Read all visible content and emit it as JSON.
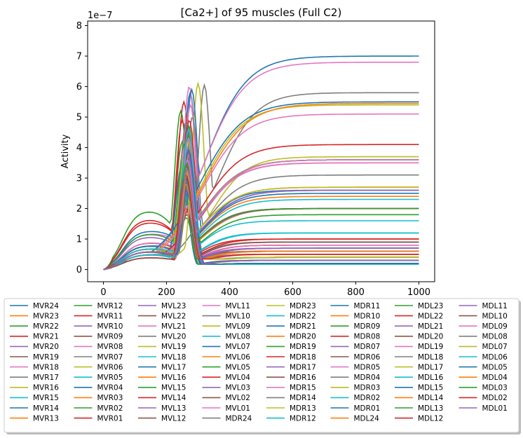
{
  "chart_data": {
    "type": "line",
    "title": "[Ca2+] of 95 muscles (Full C2)",
    "xlabel": "",
    "ylabel": "Activity",
    "offset_text": "1e−7",
    "xlim": [
      -50,
      1050
    ],
    "ylim": [
      -0.4,
      8.15
    ],
    "y_scale_exponent": -7,
    "xticks": [
      0,
      200,
      400,
      600,
      800,
      1000
    ],
    "yticks": [
      0,
      1,
      2,
      3,
      4,
      5,
      6,
      7,
      8
    ],
    "grid": false,
    "legend_placement": "below plot, 8 columns",
    "palette": [
      "#1f77b4",
      "#ff7f0e",
      "#2ca02c",
      "#d62728",
      "#9467bd",
      "#8c564b",
      "#e377c2",
      "#7f7f7f",
      "#bcbd22",
      "#17becf"
    ],
    "series": [
      {
        "name": "MVR24",
        "peak_t": 275,
        "peak": 5.8,
        "final": 2.6,
        "shoulder": 0.5,
        "settle": 140
      },
      {
        "name": "MVR23",
        "peak_t": 260,
        "peak": 3.2,
        "final": 0.5,
        "shoulder": 0.6,
        "settle": 110
      },
      {
        "name": "MVR22",
        "peak_t": 250,
        "peak": 4.2,
        "final": 0.3,
        "shoulder": 0.7,
        "settle": 100
      },
      {
        "name": "MVR21",
        "peak_t": 255,
        "peak": 5.5,
        "final": 1.0,
        "shoulder": 1.6,
        "settle": 120
      },
      {
        "name": "MVR20",
        "peak_t": 265,
        "peak": 4.6,
        "final": 2.0,
        "shoulder": 0.9,
        "settle": 150
      },
      {
        "name": "MVR19",
        "peak_t": 260,
        "peak": 3.9,
        "final": 0.2,
        "shoulder": 0.8,
        "settle": 100
      },
      {
        "name": "MVR18",
        "peak_t": 262,
        "peak": 3.3,
        "final": 0.7,
        "shoulder": 0.9,
        "settle": 110
      },
      {
        "name": "MVR17",
        "peak_t": 258,
        "peak": 3.0,
        "final": 0.6,
        "shoulder": 0.6,
        "settle": 100
      },
      {
        "name": "MVR16",
        "peak_t": 266,
        "peak": 3.5,
        "final": 0.4,
        "shoulder": 0.5,
        "settle": 110
      },
      {
        "name": "MVR15",
        "peak_t": 270,
        "peak": 3.1,
        "final": 0.3,
        "shoulder": 0.6,
        "settle": 110
      },
      {
        "name": "MVR14",
        "peak_t": 262,
        "peak": 2.6,
        "final": 0.2,
        "shoulder": 0.7,
        "settle": 100
      },
      {
        "name": "MVR13",
        "peak_t": 268,
        "peak": 2.9,
        "final": 0.4,
        "shoulder": 0.5,
        "settle": 120
      },
      {
        "name": "MVR12",
        "peak_t": 245,
        "peak": 5.2,
        "final": 0.6,
        "shoulder": 2.0,
        "settle": 110
      },
      {
        "name": "MVR11",
        "peak_t": 250,
        "peak": 4.9,
        "final": 0.5,
        "shoulder": 1.7,
        "settle": 110
      },
      {
        "name": "MVR10",
        "peak_t": 256,
        "peak": 2.8,
        "final": 0.5,
        "shoulder": 1.1,
        "settle": 100
      },
      {
        "name": "MVR09",
        "peak_t": 258,
        "peak": 3.1,
        "final": 0.6,
        "shoulder": 0.8,
        "settle": 100
      },
      {
        "name": "MVR08",
        "peak_t": 272,
        "peak": 4.0,
        "final": 0.8,
        "shoulder": 1.2,
        "settle": 120
      },
      {
        "name": "MVR07",
        "peak_t": 276,
        "peak": 2.9,
        "final": 0.4,
        "shoulder": 0.6,
        "settle": 130
      },
      {
        "name": "MVR06",
        "peak_t": 264,
        "peak": 2.4,
        "final": 0.6,
        "shoulder": 0.7,
        "settle": 120
      },
      {
        "name": "MVR05",
        "peak_t": 262,
        "peak": 2.2,
        "final": 1.2,
        "shoulder": 0.7,
        "settle": 130
      },
      {
        "name": "MVR04",
        "peak_t": 265,
        "peak": 2.7,
        "final": 0.9,
        "shoulder": 1.3,
        "settle": 120
      },
      {
        "name": "MVR03",
        "peak_t": 268,
        "peak": 2.0,
        "final": 2.0,
        "shoulder": 0.8,
        "settle": 160
      },
      {
        "name": "MVR02",
        "peak_t": 262,
        "peak": 1.7,
        "final": 0.4,
        "shoulder": 0.6,
        "settle": 120
      },
      {
        "name": "MVR01",
        "peak_t": 266,
        "peak": 1.9,
        "final": 0.7,
        "shoulder": 0.5,
        "settle": 130
      },
      {
        "name": "MVL23",
        "peak_t": 258,
        "peak": 2.5,
        "final": 0.6,
        "shoulder": 0.4,
        "settle": 120
      },
      {
        "name": "MVL22",
        "peak_t": 262,
        "peak": 3.3,
        "final": 0.6,
        "shoulder": 0.9,
        "settle": 130
      },
      {
        "name": "MVL21",
        "peak_t": 272,
        "peak": 6.0,
        "final": 3.5,
        "shoulder": 0.9,
        "settle": 170
      },
      {
        "name": "MVL20",
        "peak_t": 257,
        "peak": 3.0,
        "final": 0.9,
        "shoulder": 0.6,
        "settle": 120
      },
      {
        "name": "MVL19",
        "peak_t": 264,
        "peak": 2.3,
        "final": 0.3,
        "shoulder": 0.5,
        "settle": 120
      },
      {
        "name": "MVL18",
        "peak_t": 252,
        "peak": 2.8,
        "final": 0.1,
        "shoulder": 0.5,
        "settle": 110
      },
      {
        "name": "MVL17",
        "peak_t": 248,
        "peak": 3.4,
        "final": 0.3,
        "shoulder": 0.6,
        "settle": 110
      },
      {
        "name": "MVL16",
        "peak_t": 262,
        "peak": 3.6,
        "final": 0.4,
        "shoulder": 0.8,
        "settle": 120
      },
      {
        "name": "MVL15",
        "peak_t": 256,
        "peak": 4.1,
        "final": 0.5,
        "shoulder": 1.2,
        "settle": 120
      },
      {
        "name": "MVL14",
        "peak_t": 262,
        "peak": 3.9,
        "final": 0.8,
        "shoulder": 0.8,
        "settle": 130
      },
      {
        "name": "MVL13",
        "peak_t": 268,
        "peak": 3.0,
        "final": 0.2,
        "shoulder": 0.6,
        "settle": 110
      },
      {
        "name": "MVL12",
        "peak_t": 268,
        "peak": 3.2,
        "final": 0.5,
        "shoulder": 0.5,
        "settle": 120
      },
      {
        "name": "MVL11",
        "peak_t": 260,
        "peak": 2.2,
        "final": 0.8,
        "shoulder": 0.4,
        "settle": 130
      },
      {
        "name": "MVL10",
        "peak_t": 262,
        "peak": 4.8,
        "final": 0.6,
        "shoulder": 0.8,
        "settle": 120
      },
      {
        "name": "MVL09",
        "peak_t": 270,
        "peak": 3.1,
        "final": 0.4,
        "shoulder": 0.5,
        "settle": 130
      },
      {
        "name": "MVL08",
        "peak_t": 258,
        "peak": 3.0,
        "final": 0.1,
        "shoulder": 0.6,
        "settle": 100
      },
      {
        "name": "MVL07",
        "peak_t": 260,
        "peak": 3.7,
        "final": 0.7,
        "shoulder": 0.8,
        "settle": 130
      },
      {
        "name": "MVL06",
        "peak_t": 266,
        "peak": 2.6,
        "final": 0.6,
        "shoulder": 0.7,
        "settle": 130
      },
      {
        "name": "MVL05",
        "peak_t": 254,
        "peak": 2.4,
        "final": 0.2,
        "shoulder": 0.6,
        "settle": 110
      },
      {
        "name": "MVL04",
        "peak_t": 262,
        "peak": 2.0,
        "final": 0.4,
        "shoulder": 0.4,
        "settle": 120
      },
      {
        "name": "MVL03",
        "peak_t": 270,
        "peak": 2.7,
        "final": 2.6,
        "shoulder": 0.6,
        "settle": 170
      },
      {
        "name": "MVL02",
        "peak_t": 264,
        "peak": 1.8,
        "final": 0.3,
        "shoulder": 0.4,
        "settle": 130
      },
      {
        "name": "MVL01",
        "peak_t": 268,
        "peak": 2.1,
        "final": 0.5,
        "shoulder": 0.5,
        "settle": 130
      },
      {
        "name": "MDR24",
        "peak_t": 320,
        "peak": 6.05,
        "final": 5.8,
        "shoulder": 0.5,
        "settle": 170,
        "dip": 4.7
      },
      {
        "name": "MDR23",
        "peak_t": 300,
        "peak": 6.1,
        "final": 3.7,
        "shoulder": 0.6,
        "settle": 160
      },
      {
        "name": "MDR22",
        "peak_t": 262,
        "peak": 2.9,
        "final": 0.3,
        "shoulder": 0.6,
        "settle": 110
      },
      {
        "name": "MDR21",
        "peak_t": 280,
        "peak": 5.9,
        "final": 7.0,
        "shoulder": 0.8,
        "settle": 190,
        "dip": 4.6
      },
      {
        "name": "MDR20",
        "peak_t": 268,
        "peak": 2.8,
        "final": 2.4,
        "shoulder": 0.6,
        "settle": 160
      },
      {
        "name": "MDR19",
        "peak_t": 270,
        "peak": 4.5,
        "final": 1.8,
        "shoulder": 0.5,
        "settle": 150
      },
      {
        "name": "MDR18",
        "peak_t": 266,
        "peak": 3.9,
        "final": 1.0,
        "shoulder": 0.7,
        "settle": 130
      },
      {
        "name": "MDR17",
        "peak_t": 262,
        "peak": 3.2,
        "final": 0.6,
        "shoulder": 0.6,
        "settle": 120
      },
      {
        "name": "MDR16",
        "peak_t": 272,
        "peak": 4.4,
        "final": 3.6,
        "shoulder": 0.6,
        "settle": 180
      },
      {
        "name": "MDR15",
        "peak_t": 276,
        "peak": 5.4,
        "final": 6.8,
        "shoulder": 0.7,
        "settle": 190
      },
      {
        "name": "MDR14",
        "peak_t": 282,
        "peak": 5.0,
        "final": 3.1,
        "shoulder": 0.5,
        "settle": 170
      },
      {
        "name": "MDR13",
        "peak_t": 258,
        "peak": 3.7,
        "final": 0.5,
        "shoulder": 0.7,
        "settle": 120
      },
      {
        "name": "MDR12",
        "peak_t": 264,
        "peak": 4.0,
        "final": 0.3,
        "shoulder": 0.6,
        "settle": 110
      },
      {
        "name": "MDR11",
        "peak_t": 262,
        "peak": 2.6,
        "final": 5.5,
        "shoulder": 0.6,
        "settle": 200
      },
      {
        "name": "MDR10",
        "peak_t": 266,
        "peak": 3.3,
        "final": 2.7,
        "shoulder": 0.6,
        "settle": 170
      },
      {
        "name": "MDR09",
        "peak_t": 270,
        "peak": 4.7,
        "final": 3.6,
        "shoulder": 0.7,
        "settle": 180
      },
      {
        "name": "MDR08",
        "peak_t": 272,
        "peak": 4.9,
        "final": 4.1,
        "shoulder": 0.6,
        "settle": 180
      },
      {
        "name": "MDR07",
        "peak_t": 264,
        "peak": 3.6,
        "final": 2.0,
        "shoulder": 0.5,
        "settle": 160
      },
      {
        "name": "MDR06",
        "peak_t": 266,
        "peak": 3.3,
        "final": 0.6,
        "shoulder": 0.6,
        "settle": 120
      },
      {
        "name": "MDR05",
        "peak_t": 270,
        "peak": 4.6,
        "final": 5.1,
        "shoulder": 0.6,
        "settle": 190
      },
      {
        "name": "MDR04",
        "peak_t": 262,
        "peak": 3.0,
        "final": 0.4,
        "shoulder": 0.6,
        "settle": 110
      },
      {
        "name": "MDR03",
        "peak_t": 268,
        "peak": 4.2,
        "final": 5.4,
        "shoulder": 0.6,
        "settle": 190
      },
      {
        "name": "MDR02",
        "peak_t": 262,
        "peak": 2.9,
        "final": 1.6,
        "shoulder": 0.6,
        "settle": 140
      },
      {
        "name": "MDR01",
        "peak_t": 272,
        "peak": 3.1,
        "final": 0.3,
        "shoulder": 0.6,
        "settle": 110
      },
      {
        "name": "MDL24",
        "peak_t": 274,
        "peak": 3.9,
        "final": 5.45,
        "shoulder": 0.7,
        "settle": 200
      },
      {
        "name": "MDL23",
        "peak_t": 268,
        "peak": 4.4,
        "final": 3.6,
        "shoulder": 0.6,
        "settle": 180
      },
      {
        "name": "MDL22",
        "peak_t": 262,
        "peak": 3.5,
        "final": 2.0,
        "shoulder": 0.5,
        "settle": 150
      },
      {
        "name": "MDL21",
        "peak_t": 266,
        "peak": 3.9,
        "final": 0.7,
        "shoulder": 0.6,
        "settle": 130
      },
      {
        "name": "MDL20",
        "peak_t": 262,
        "peak": 3.1,
        "final": 0.6,
        "shoulder": 0.6,
        "settle": 120
      },
      {
        "name": "MDL19",
        "peak_t": 270,
        "peak": 4.3,
        "final": 3.6,
        "shoulder": 0.6,
        "settle": 180
      },
      {
        "name": "MDL18",
        "peak_t": 262,
        "peak": 3.2,
        "final": 0.4,
        "shoulder": 0.5,
        "settle": 120
      },
      {
        "name": "MDL17",
        "peak_t": 266,
        "peak": 3.4,
        "final": 2.7,
        "shoulder": 0.6,
        "settle": 170
      },
      {
        "name": "MDL16",
        "peak_t": 264,
        "peak": 3.2,
        "final": 1.2,
        "shoulder": 0.5,
        "settle": 140
      },
      {
        "name": "MDL15",
        "peak_t": 270,
        "peak": 3.9,
        "final": 2.5,
        "shoulder": 0.6,
        "settle": 160
      },
      {
        "name": "MDL14",
        "peak_t": 262,
        "peak": 2.8,
        "final": 0.5,
        "shoulder": 0.6,
        "settle": 120
      },
      {
        "name": "MDL13",
        "peak_t": 266,
        "peak": 3.3,
        "final": 0.4,
        "shoulder": 0.6,
        "settle": 120
      },
      {
        "name": "MDL12",
        "peak_t": 262,
        "peak": 3.0,
        "final": 0.3,
        "shoulder": 0.6,
        "settle": 110
      },
      {
        "name": "MDL11",
        "peak_t": 268,
        "peak": 3.6,
        "final": 2.6,
        "shoulder": 0.6,
        "settle": 170
      },
      {
        "name": "MDL10",
        "peak_t": 264,
        "peak": 3.4,
        "final": 0.9,
        "shoulder": 0.6,
        "settle": 130
      },
      {
        "name": "MDL09",
        "peak_t": 266,
        "peak": 3.6,
        "final": 3.5,
        "shoulder": 0.6,
        "settle": 180
      },
      {
        "name": "MDL08",
        "peak_t": 262,
        "peak": 2.9,
        "final": 0.6,
        "shoulder": 0.6,
        "settle": 120
      },
      {
        "name": "MDL07",
        "peak_t": 264,
        "peak": 3.1,
        "final": 0.4,
        "shoulder": 0.6,
        "settle": 120
      },
      {
        "name": "MDL06",
        "peak_t": 270,
        "peak": 4.6,
        "final": 2.3,
        "shoulder": 0.7,
        "settle": 160
      },
      {
        "name": "MDL05",
        "peak_t": 262,
        "peak": 3.0,
        "final": 0.2,
        "shoulder": 0.6,
        "settle": 110
      },
      {
        "name": "MDL04",
        "peak_t": 266,
        "peak": 3.2,
        "final": 0.6,
        "shoulder": 0.6,
        "settle": 120
      },
      {
        "name": "MDL03",
        "peak_t": 264,
        "peak": 3.5,
        "final": 2.0,
        "shoulder": 0.6,
        "settle": 150
      },
      {
        "name": "MDL02",
        "peak_t": 262,
        "peak": 3.1,
        "final": 0.5,
        "shoulder": 0.6,
        "settle": 120
      },
      {
        "name": "MDL01",
        "peak_t": 266,
        "peak": 3.3,
        "final": 0.3,
        "shoulder": 0.6,
        "settle": 120
      }
    ]
  }
}
